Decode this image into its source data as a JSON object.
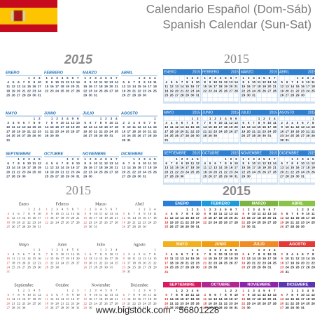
{
  "header": {
    "title_es": "Calendario Español (Dom-Sáb)",
    "title_en": "Spanish Calendar (Sun-Sat)"
  },
  "months": [
    {
      "days": [
        null,
        null,
        null,
        null,
        1,
        2,
        3,
        4,
        5,
        6,
        7,
        8,
        9,
        10,
        11,
        12,
        13,
        14,
        15,
        16,
        17,
        18,
        19,
        20,
        21,
        22,
        23,
        24,
        25,
        26,
        27,
        28,
        29,
        30,
        31
      ]
    },
    {
      "days": [
        1,
        2,
        3,
        4,
        5,
        6,
        7,
        8,
        9,
        10,
        11,
        12,
        13,
        14,
        15,
        16,
        17,
        18,
        19,
        20,
        21,
        22,
        23,
        24,
        25,
        26,
        27,
        28
      ]
    },
    {
      "days": [
        1,
        2,
        3,
        4,
        5,
        6,
        7,
        8,
        9,
        10,
        11,
        12,
        13,
        14,
        15,
        16,
        17,
        18,
        19,
        20,
        21,
        22,
        23,
        24,
        25,
        26,
        27,
        28,
        29,
        30,
        31
      ]
    },
    {
      "days": [
        null,
        null,
        null,
        1,
        2,
        3,
        4,
        5,
        6,
        7,
        8,
        9,
        10,
        11,
        12,
        13,
        14,
        15,
        16,
        17,
        18,
        19,
        20,
        21,
        22,
        23,
        24,
        25,
        26,
        27,
        28,
        29,
        30
      ]
    },
    {
      "days": [
        null,
        null,
        null,
        null,
        null,
        1,
        2,
        3,
        4,
        5,
        6,
        7,
        8,
        9,
        10,
        11,
        12,
        13,
        14,
        15,
        16,
        17,
        18,
        19,
        20,
        21,
        22,
        23,
        24,
        25,
        26,
        27,
        28,
        29,
        30,
        31
      ]
    },
    {
      "days": [
        null,
        1,
        2,
        3,
        4,
        5,
        6,
        7,
        8,
        9,
        10,
        11,
        12,
        13,
        14,
        15,
        16,
        17,
        18,
        19,
        20,
        21,
        22,
        23,
        24,
        25,
        26,
        27,
        28,
        29,
        30
      ]
    },
    {
      "days": [
        null,
        null,
        null,
        1,
        2,
        3,
        4,
        5,
        6,
        7,
        8,
        9,
        10,
        11,
        12,
        13,
        14,
        15,
        16,
        17,
        18,
        19,
        20,
        21,
        22,
        23,
        24,
        25,
        26,
        27,
        28,
        29,
        30,
        31
      ]
    },
    {
      "days": [
        null,
        null,
        null,
        null,
        null,
        null,
        1,
        2,
        3,
        4,
        5,
        6,
        7,
        8,
        9,
        10,
        11,
        12,
        13,
        14,
        15,
        16,
        17,
        18,
        19,
        20,
        21,
        22,
        23,
        24,
        25,
        26,
        27,
        28,
        29,
        30,
        31
      ]
    },
    {
      "days": [
        null,
        null,
        1,
        2,
        3,
        4,
        5,
        6,
        7,
        8,
        9,
        10,
        11,
        12,
        13,
        14,
        15,
        16,
        17,
        18,
        19,
        20,
        21,
        22,
        23,
        24,
        25,
        26,
        27,
        28,
        29,
        30
      ]
    },
    {
      "days": [
        null,
        null,
        null,
        null,
        1,
        2,
        3,
        4,
        5,
        6,
        7,
        8,
        9,
        10,
        11,
        12,
        13,
        14,
        15,
        16,
        17,
        18,
        19,
        20,
        21,
        22,
        23,
        24,
        25,
        26,
        27,
        28,
        29,
        30,
        31
      ]
    },
    {
      "days": [
        1,
        2,
        3,
        4,
        5,
        6,
        7,
        8,
        9,
        10,
        11,
        12,
        13,
        14,
        15,
        16,
        17,
        18,
        19,
        20,
        21,
        22,
        23,
        24,
        25,
        26,
        27,
        28,
        29,
        30
      ]
    },
    {
      "days": [
        null,
        null,
        1,
        2,
        3,
        4,
        5,
        6,
        7,
        8,
        9,
        10,
        11,
        12,
        13,
        14,
        15,
        16,
        17,
        18,
        19,
        20,
        21,
        22,
        23,
        24,
        25,
        26,
        27,
        28,
        29,
        30,
        31
      ]
    }
  ],
  "calendars": [
    {
      "year": "2015",
      "month_names": [
        "ENERO",
        "FEBRERO",
        "MARZO",
        "ABRIL",
        "MAYO",
        "JUNIO",
        "JULIO",
        "AGOSTO",
        "SEPTIEMBRE",
        "OCTUBRE",
        "NOVIEMBRE",
        "DICIEMBRE"
      ]
    },
    {
      "year": "2015",
      "month_names": [
        "ENERO",
        "FEBRERO",
        "MARZO",
        "ABRIL",
        "MAYO",
        "JUNIO",
        "JULIO",
        "AGOSTO",
        "SEPTIEMBRE",
        "OCTUBRE",
        "NOVIEMBRE",
        "DICIEMBRE"
      ]
    },
    {
      "year": "2015",
      "month_names": [
        "Enero",
        "Febrero",
        "Marzo",
        "Abril",
        "Mayo",
        "Junio",
        "Julio",
        "Agosto",
        "Septiembre",
        "Octubre",
        "Noviembre",
        "Diciembre"
      ]
    },
    {
      "year": "2015",
      "month_names": [
        "ENERO",
        "FEBRERO",
        "MARZO",
        "ABRIL",
        "MAYO",
        "JUNIO",
        "JULIO",
        "AGOSTO",
        "SEPTIEMBRE",
        "OCTUBRE",
        "NOVIEMBRE",
        "DICIEMBRE"
      ],
      "header_colors": [
        "#2a7fd4",
        "#1f9ad6",
        "#7cb342",
        "#8bc34a",
        "#f2b01e",
        "#f39c12",
        "#f08a24",
        "#e53935",
        "#d81b60",
        "#b0288f",
        "#8e24aa",
        "#5e35b1"
      ]
    }
  ],
  "footer": {
    "credit": "www.bigstock.com · 56801228"
  }
}
